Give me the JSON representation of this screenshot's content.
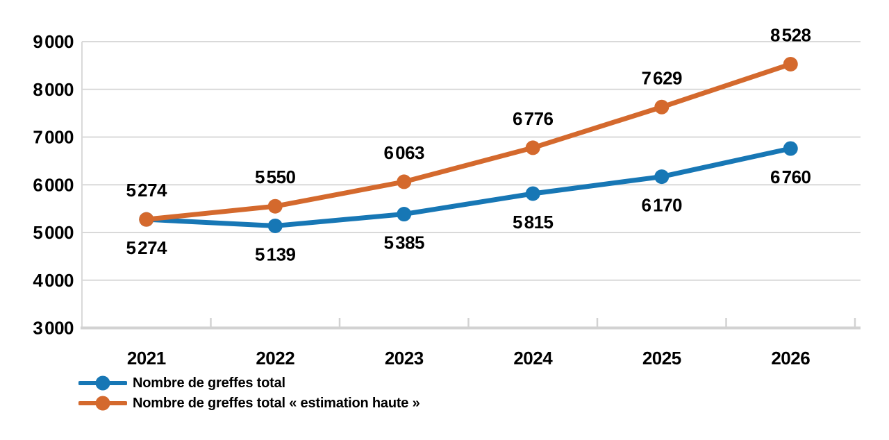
{
  "page": {
    "background": "#ffffff"
  },
  "chart_data": {
    "type": "line",
    "categories": [
      "2021",
      "2022",
      "2023",
      "2024",
      "2025",
      "2026"
    ],
    "series": [
      {
        "name": "Nombre de greffes total",
        "color": "#1777b5",
        "values": [
          5274,
          5139,
          5385,
          5815,
          6170,
          6760
        ],
        "labels": [
          "5 274",
          "5 139",
          "5 385",
          "5 815",
          "6 170",
          "6 760"
        ],
        "label_position": "below"
      },
      {
        "name": "Nombre de greffes total « estimation haute »",
        "color": "#d4692d",
        "values": [
          5274,
          5550,
          6063,
          6776,
          7629,
          8528
        ],
        "labels": [
          "5 274",
          "5 550",
          "6 063",
          "6 776",
          "7 629",
          "8 528"
        ],
        "label_position": "above"
      }
    ],
    "ylim": [
      3000,
      9000
    ],
    "ytick_step": 1000,
    "ytick_labels": [
      "3 000",
      "4 000",
      "5 000",
      "6 000",
      "7 000",
      "8 000",
      "9 000"
    ],
    "grid": true,
    "legend_position": "bottom-left",
    "styles": {
      "grid_color": "#d9d9d9",
      "axis_color": "#d2d2d2",
      "text_color": "#000000"
    }
  }
}
